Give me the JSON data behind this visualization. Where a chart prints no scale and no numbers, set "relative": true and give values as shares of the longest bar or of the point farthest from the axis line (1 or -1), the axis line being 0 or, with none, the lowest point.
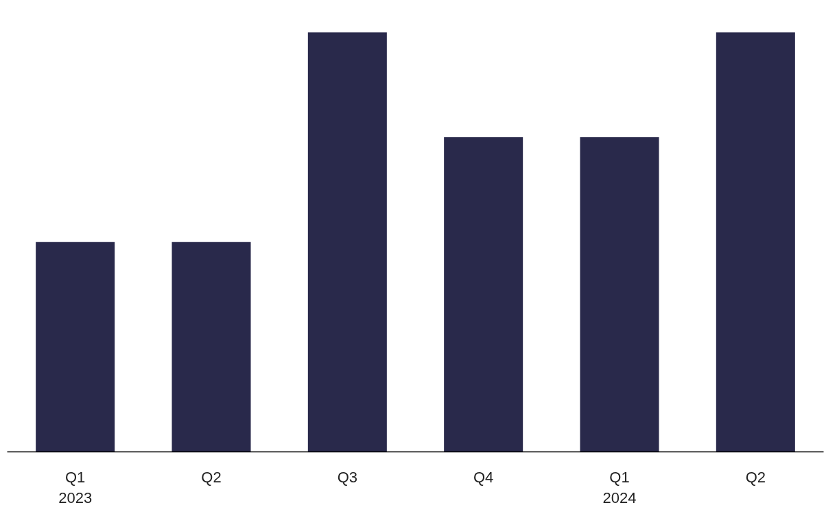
{
  "chart_data": {
    "type": "bar",
    "relative": true,
    "categories": [
      "Q1\n2023",
      "Q2",
      "Q3",
      "Q4",
      "Q1\n2024",
      "Q2"
    ],
    "values": [
      0.5,
      0.5,
      1,
      0.75,
      0.75,
      1
    ],
    "color": "#29294b",
    "grid": false
  }
}
